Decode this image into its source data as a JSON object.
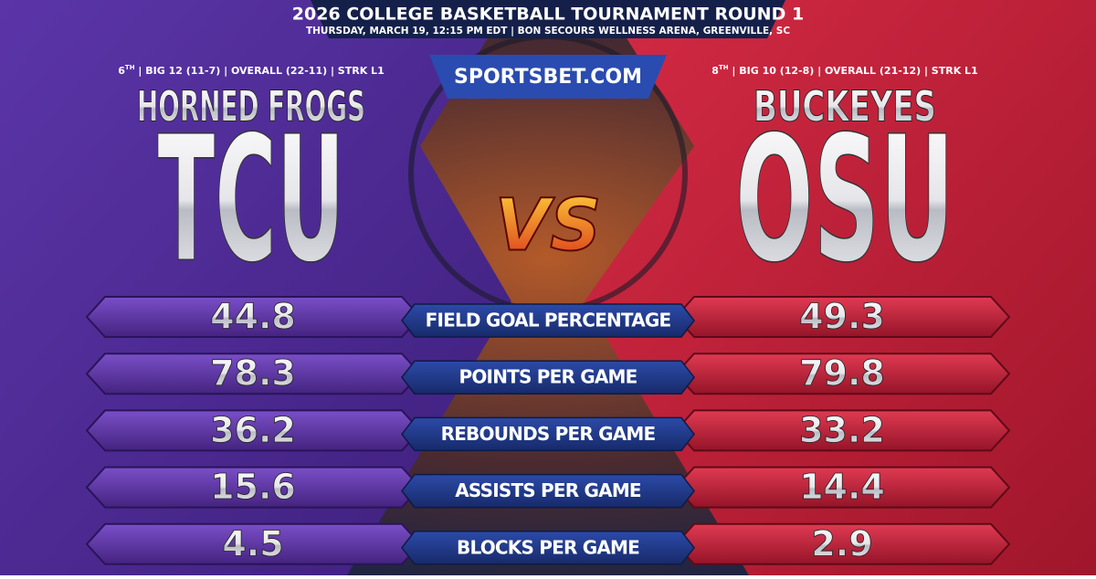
{
  "header": {
    "title": "2026 COLLEGE BASKETBALL TOURNAMENT ROUND 1",
    "subtitle": "THURSDAY, MARCH 19, 12:15 PM EDT | BON SECOURS WELLNESS ARENA, GREENVILLE, SC",
    "site": "SPORTSBET.COM"
  },
  "teams": [
    {
      "rank": "6",
      "rank_suffix": "TH",
      "info": "| BIG 12 (11-7) | OVERALL (22-11) | STRK L1",
      "nickname": "HORNED FROGS",
      "abbr": "TCU"
    },
    {
      "rank": "8",
      "rank_suffix": "TH",
      "info": "| BIG 10 (12-8) | OVERALL (21-12) | STRK L1",
      "nickname": "BUCKEYES",
      "abbr": "OSU"
    }
  ],
  "versus": "VS",
  "stats": {
    "rows": [
      {
        "label": "FIELD GOAL PERCENTAGE",
        "values": [
          44.8,
          49.3
        ]
      },
      {
        "label": "POINTS PER GAME",
        "values": [
          78.3,
          79.8
        ]
      },
      {
        "label": "REBOUNDS PER GAME",
        "values": [
          36.2,
          33.2
        ]
      },
      {
        "label": "ASSISTS PER GAME",
        "values": [
          15.6,
          14.4
        ]
      },
      {
        "label": "BLOCKS PER GAME",
        "values": [
          4.5,
          2.9
        ]
      }
    ]
  }
}
